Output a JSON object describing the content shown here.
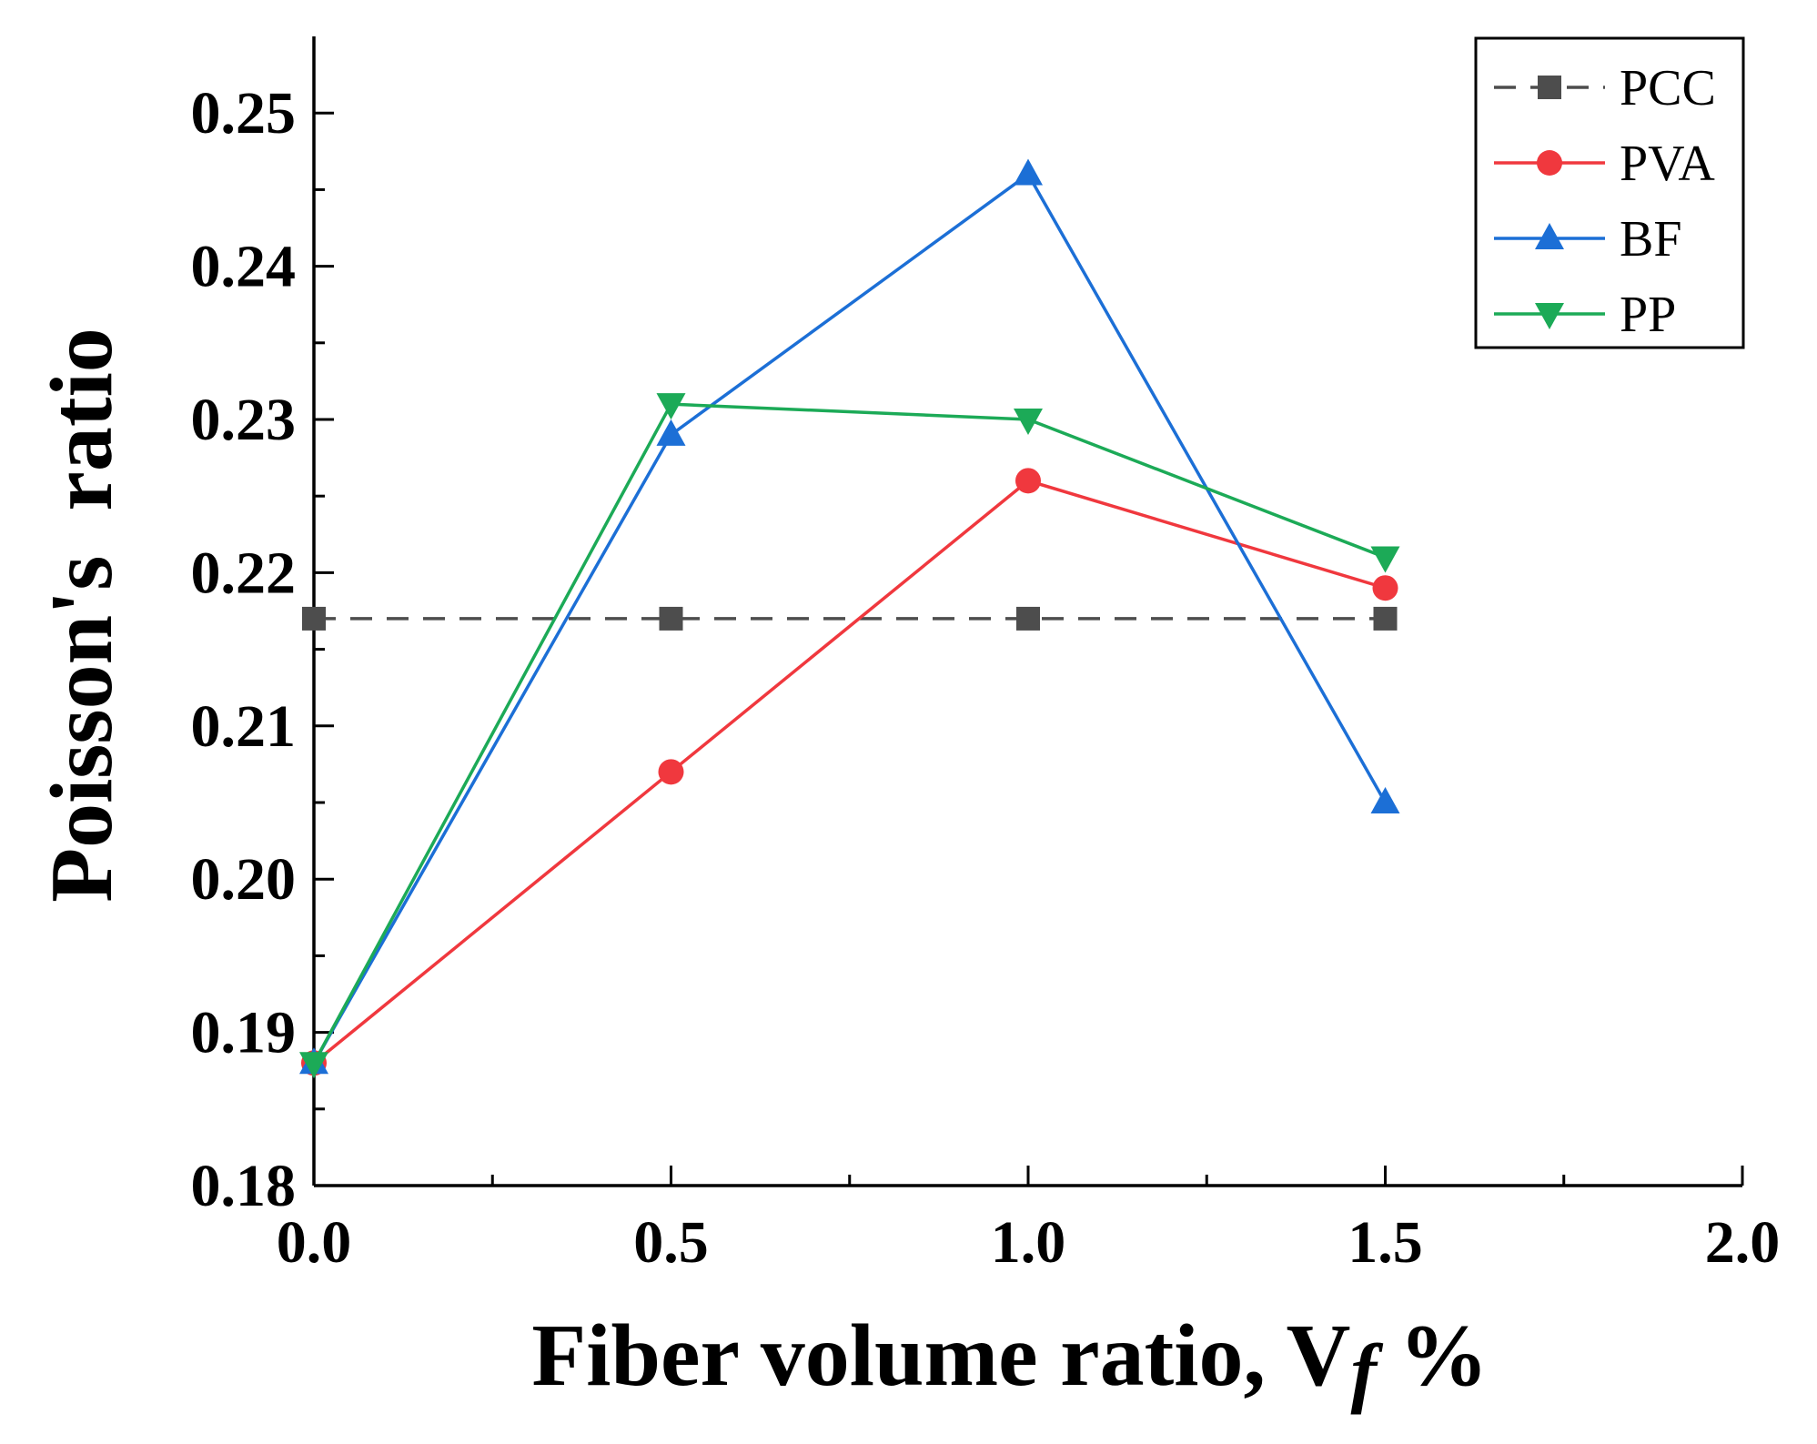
{
  "chart_data": {
    "type": "line",
    "title": "",
    "xlabel": "Fiber volume ratio, V",
    "xlabel_italic_part": "f",
    "xlabel_suffix": " %",
    "ylabel": "Poisson's  ratio",
    "xlim": [
      0,
      2.0
    ],
    "ylim": [
      0.18,
      0.255
    ],
    "x_ticks": [
      "0.0",
      "0.5",
      "1.0",
      "1.5",
      "2.0"
    ],
    "x_tick_values": [
      0,
      0.5,
      1.0,
      1.5,
      2.0
    ],
    "y_ticks": [
      "0.18",
      "0.19",
      "0.20",
      "0.21",
      "0.22",
      "0.23",
      "0.24",
      "0.25"
    ],
    "y_tick_values": [
      0.18,
      0.19,
      0.2,
      0.21,
      0.22,
      0.23,
      0.24,
      0.25
    ],
    "grid": false,
    "legend_position": "top-right",
    "x": [
      0,
      0.5,
      1.0,
      1.5
    ],
    "series": [
      {
        "name": "PCC",
        "values": [
          0.217,
          0.217,
          0.217,
          0.217
        ],
        "color": "#4d4d4d",
        "marker": "square",
        "dashed": true,
        "plot_x": [
          0,
          0.5,
          1.0,
          1.5
        ]
      },
      {
        "name": "PVA",
        "values": [
          0.188,
          0.207,
          0.226,
          0.219
        ],
        "color": "#f0383e",
        "marker": "circle",
        "dashed": false,
        "plot_x": [
          0,
          0.5,
          1.0,
          1.5
        ]
      },
      {
        "name": "BF",
        "values": [
          0.188,
          0.229,
          0.246,
          0.205
        ],
        "color": "#1c6fd6",
        "marker": "triangle-up",
        "dashed": false,
        "plot_x": [
          0,
          0.5,
          1.0,
          1.5
        ]
      },
      {
        "name": "PP",
        "values": [
          0.188,
          0.231,
          0.23,
          0.221
        ],
        "color": "#1caa57",
        "marker": "triangle-down",
        "dashed": false,
        "plot_x": [
          0,
          0.5,
          1.0,
          1.5
        ]
      }
    ]
  }
}
